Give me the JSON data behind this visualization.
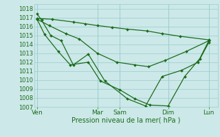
{
  "background_color": "#cce8e8",
  "grid_color": "#99cccc",
  "line_color": "#1a6b1a",
  "marker_color": "#1a6b1a",
  "xlabel": "Pression niveau de la mer( hPa )",
  "ylim": [
    1007,
    1018.5
  ],
  "yticks": [
    1007,
    1008,
    1009,
    1010,
    1011,
    1012,
    1013,
    1014,
    1015,
    1016,
    1017,
    1018
  ],
  "xtick_labels": [
    "Ven",
    "Mar",
    "Sam",
    "Dim",
    "Lun"
  ],
  "xtick_positions": [
    0,
    40,
    55,
    87,
    114
  ],
  "xlim": [
    -2,
    120
  ],
  "series": [
    {
      "x": [
        0,
        10,
        24,
        32,
        40,
        50,
        60,
        73,
        83,
        95,
        114
      ],
      "y": [
        1016.9,
        1016.8,
        1016.5,
        1016.3,
        1016.1,
        1015.9,
        1015.7,
        1015.5,
        1015.2,
        1014.9,
        1014.5
      ]
    },
    {
      "x": [
        0,
        8,
        19,
        28,
        40,
        53,
        65,
        74,
        85,
        99,
        114
      ],
      "y": [
        1016.8,
        1016.1,
        1015.2,
        1014.6,
        1013.0,
        1012.0,
        1011.7,
        1011.5,
        1012.2,
        1013.2,
        1014.4
      ]
    },
    {
      "x": [
        0,
        5,
        14,
        22,
        34,
        42,
        55,
        65,
        75,
        87,
        98,
        108,
        114
      ],
      "y": [
        1016.8,
        1015.1,
        1013.2,
        1011.7,
        1012.0,
        1009.9,
        1008.9,
        1007.9,
        1007.2,
        1007.1,
        1010.4,
        1012.4,
        1014.4
      ]
    },
    {
      "x": [
        0,
        3,
        9,
        16,
        24,
        34,
        45,
        60,
        72,
        83,
        96,
        107,
        114
      ],
      "y": [
        1017.4,
        1016.7,
        1015.0,
        1014.4,
        1011.7,
        1012.9,
        1009.9,
        1007.9,
        1007.1,
        1010.4,
        1011.1,
        1012.0,
        1014.2
      ]
    }
  ]
}
